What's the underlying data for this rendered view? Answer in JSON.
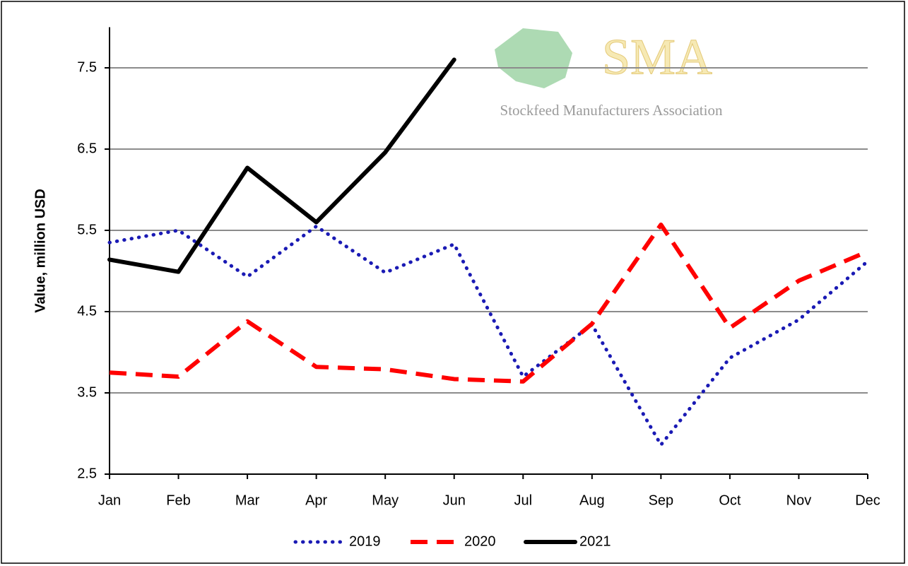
{
  "chart_data": {
    "type": "line",
    "ylabel": "Value, million USD",
    "categories": [
      "Jan",
      "Feb",
      "Mar",
      "Apr",
      "May",
      "Jun",
      "Jul",
      "Aug",
      "Sep",
      "Oct",
      "Nov",
      "Dec"
    ],
    "series": [
      {
        "name": "2019",
        "color": "#1a1ab4",
        "values": [
          5.35,
          5.5,
          4.93,
          5.55,
          4.98,
          5.33,
          3.7,
          4.34,
          2.86,
          3.93,
          4.4,
          5.12
        ]
      },
      {
        "name": "2020",
        "color": "#ff0000",
        "values": [
          3.75,
          3.7,
          4.38,
          3.82,
          3.79,
          3.67,
          3.64,
          4.35,
          5.57,
          4.3,
          4.88,
          5.24
        ]
      },
      {
        "name": "2021",
        "color": "#000000",
        "values": [
          5.14,
          4.99,
          6.27,
          5.6,
          6.46,
          7.6,
          null,
          null,
          null,
          null,
          null,
          null
        ]
      }
    ],
    "ylim": [
      2.5,
      8.0
    ],
    "yticks": [
      2.5,
      3.5,
      4.5,
      5.5,
      6.5,
      7.5
    ],
    "grid": true,
    "legend": "bottom",
    "logo": {
      "title": "SMA",
      "subtitle": "Stockfeed Manufacturers Association"
    }
  }
}
